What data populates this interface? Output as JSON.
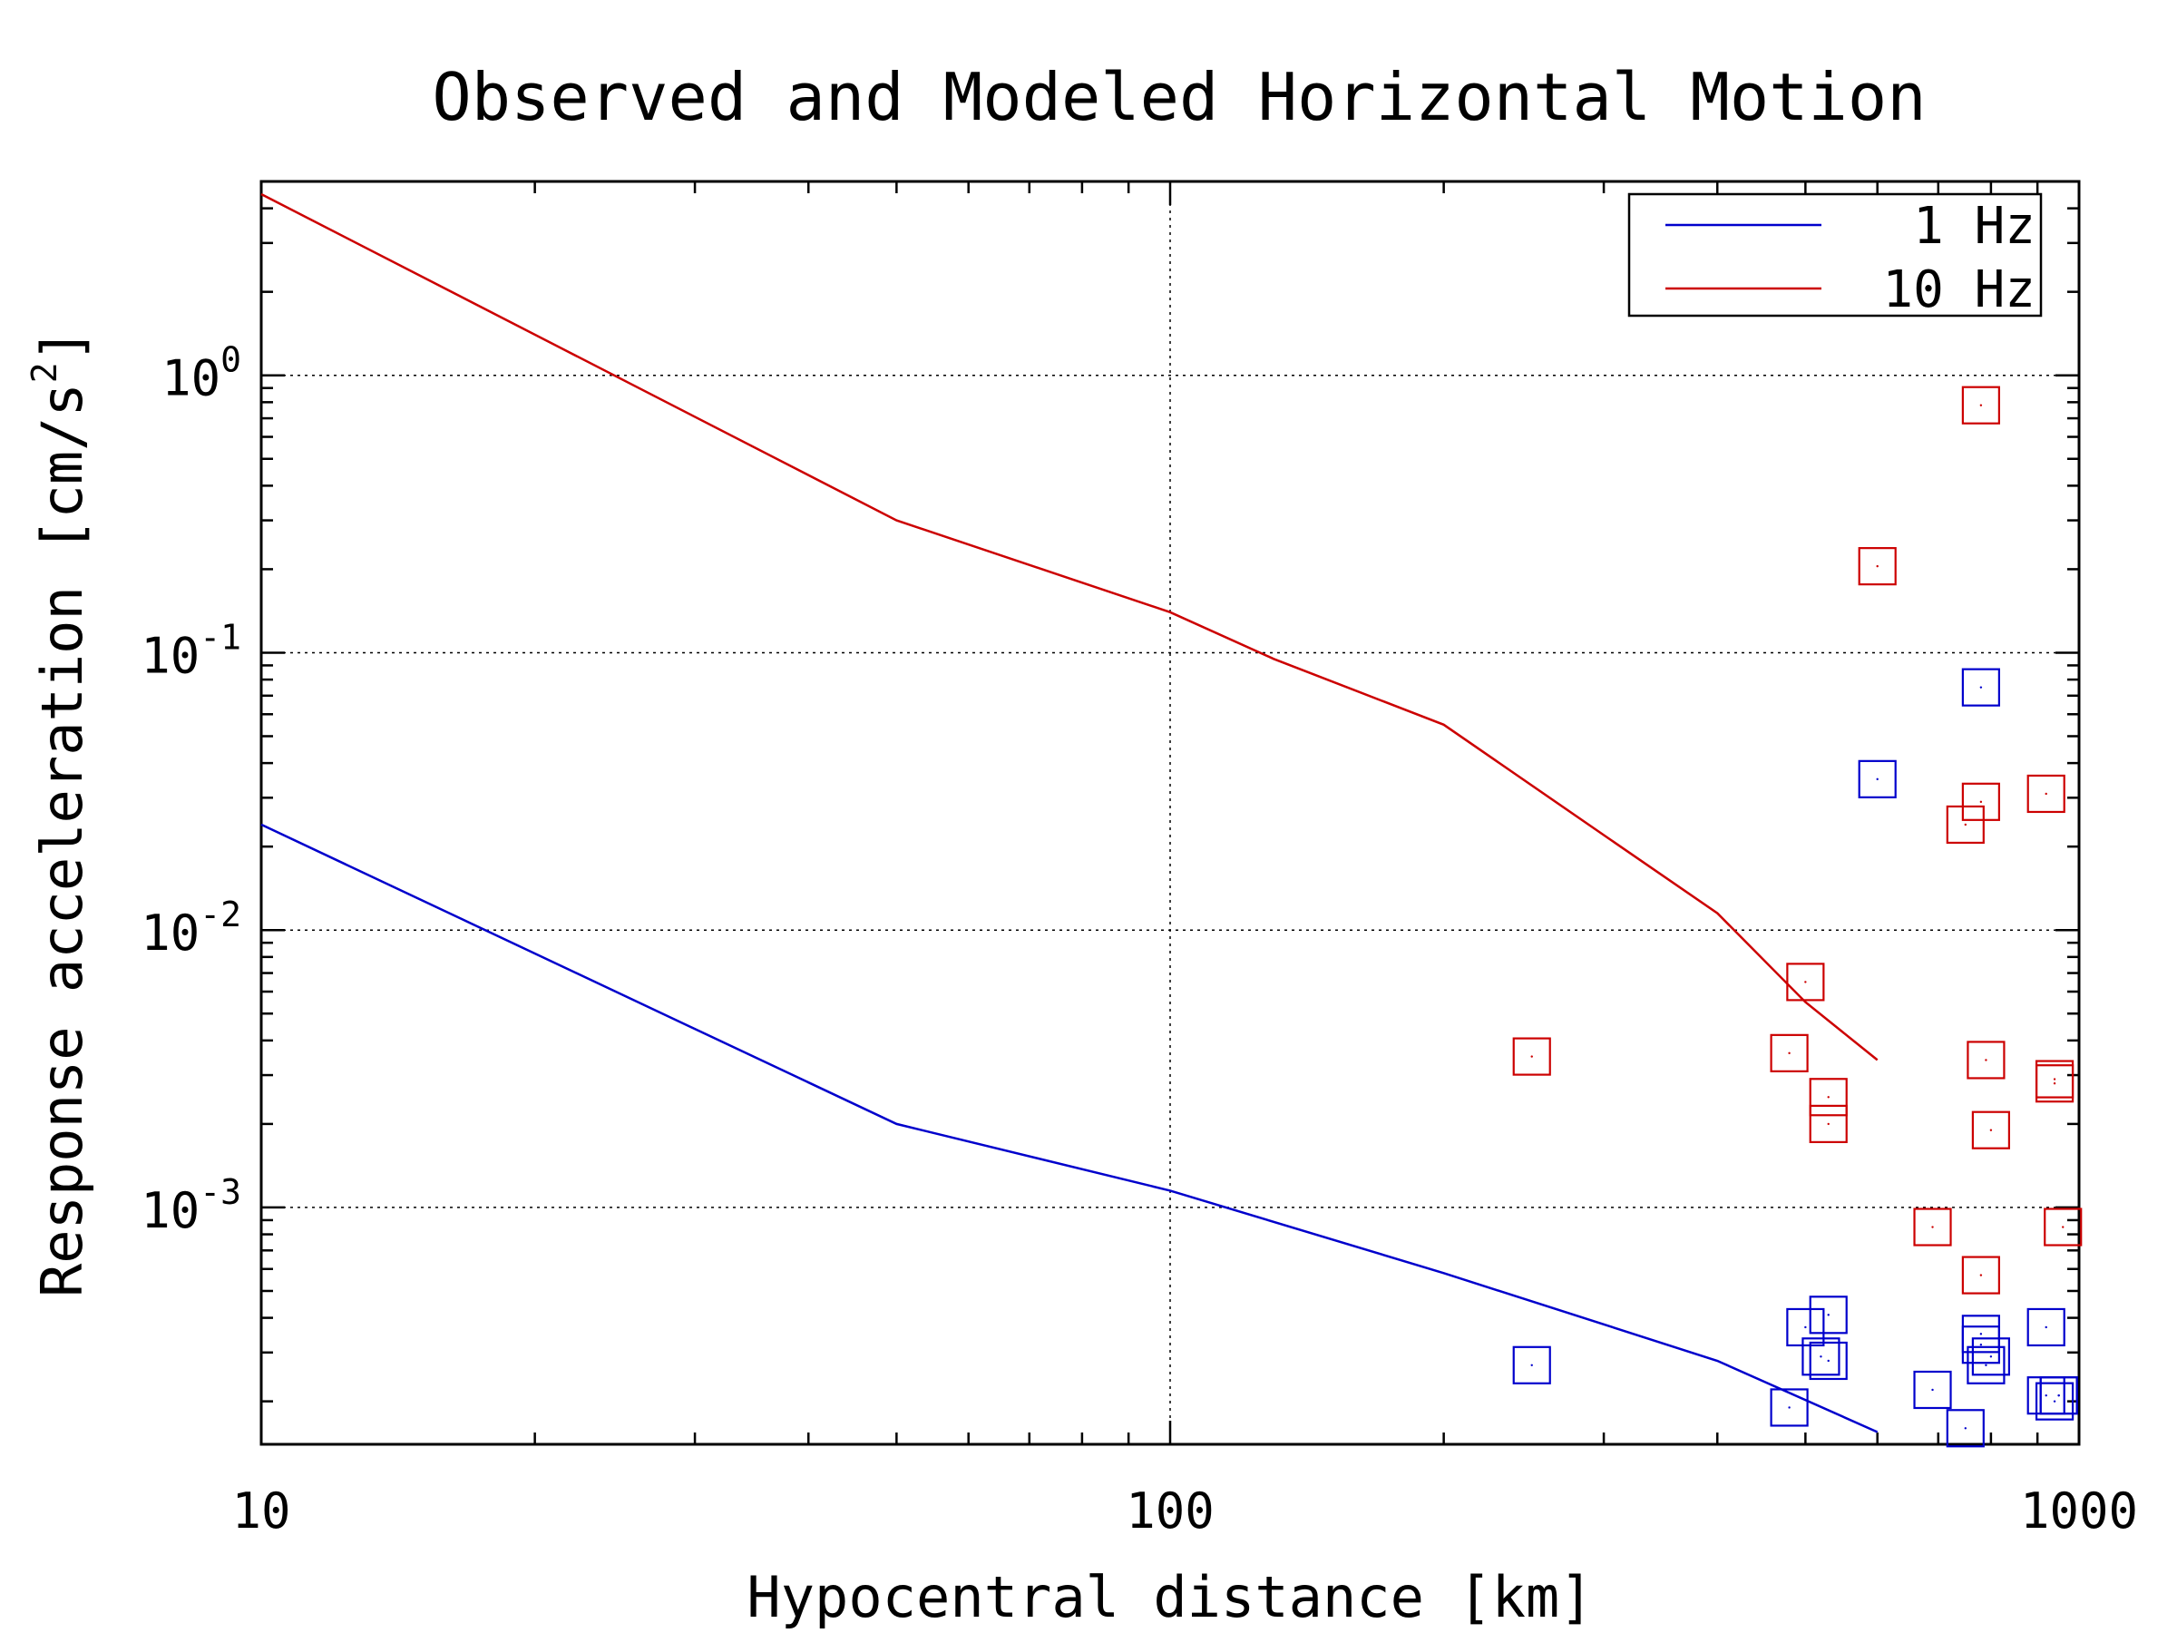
{
  "chart_data": {
    "type": "scatter",
    "title": "Observed and Modeled Horizontal Motion",
    "xlabel": "Hypocentral distance [km]",
    "ylabel": "Response acceleration [cm/s",
    "ylabel_sup": "2",
    "ylabel_close": "]",
    "xscale": "log",
    "yscale": "log",
    "xlim": [
      10,
      1000
    ],
    "ylim": [
      0.00014,
      5.0
    ],
    "grid": true,
    "legend_position": "top-right",
    "x_ticks": [
      {
        "value": 10,
        "label": "10"
      },
      {
        "value": 100,
        "label": "100"
      },
      {
        "value": 1000,
        "label": "1000"
      }
    ],
    "y_ticks": [
      {
        "value": 1,
        "base": "10",
        "exp": "0"
      },
      {
        "value": 0.1,
        "base": "10",
        "exp": "-1"
      },
      {
        "value": 0.01,
        "base": "10",
        "exp": "-2"
      },
      {
        "value": 0.001,
        "base": "10",
        "exp": "-3"
      }
    ],
    "series": [
      {
        "name": "1 Hz",
        "color": "#0000cc",
        "model_line": {
          "x": [
            10,
            50,
            100,
            200,
            400,
            600
          ],
          "y": [
            0.024,
            0.002,
            0.00115,
            0.00058,
            0.00028,
            0.000155
          ]
        },
        "observed": {
          "x": [
            250,
            480,
            500,
            530,
            530,
            520,
            690,
            750,
            780,
            780,
            790,
            800,
            920,
            920,
            940,
            950,
            950,
            780,
            600
          ],
          "y": [
            0.00027,
            0.00019,
            0.00037,
            0.00041,
            0.00028,
            0.00029,
            0.00022,
            0.00016,
            0.00035,
            0.00032,
            0.00027,
            0.00029,
            0.00037,
            0.00021,
            0.0002,
            0.00021,
            0.00021,
            0.075,
            0.035
          ]
        }
      },
      {
        "name": "10 Hz",
        "color": "#cc0000",
        "model_line": {
          "x": [
            10,
            50,
            100,
            130,
            200,
            300,
            400,
            500,
            600
          ],
          "y": [
            4.5,
            0.3,
            0.14,
            0.095,
            0.055,
            0.022,
            0.0115,
            0.0055,
            0.0034
          ]
        },
        "observed": {
          "x": [
            250,
            480,
            500,
            530,
            530,
            600,
            690,
            750,
            780,
            780,
            790,
            780,
            800,
            920,
            940,
            940,
            960
          ],
          "y": [
            0.0035,
            0.0036,
            0.0065,
            0.0025,
            0.002,
            0.205,
            0.00085,
            0.024,
            0.029,
            0.78,
            0.0034,
            0.00057,
            0.0019,
            0.031,
            0.0029,
            0.0028,
            0.00085
          ]
        }
      }
    ]
  }
}
